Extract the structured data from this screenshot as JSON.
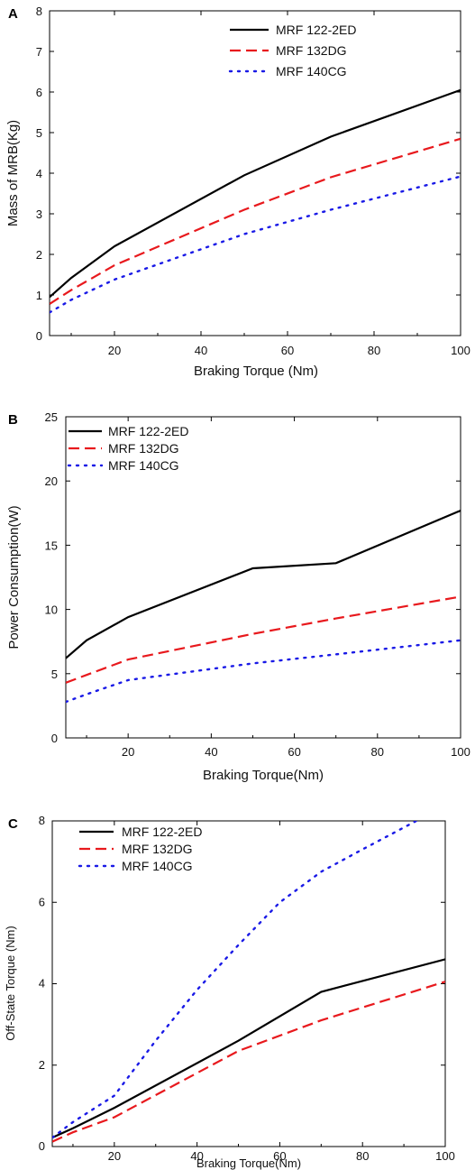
{
  "colors": {
    "black": "#000000",
    "red": "#e8191d",
    "blue": "#1a1ae6"
  },
  "chart_data": [
    {
      "panel": "A",
      "type": "line",
      "title": "",
      "xlabel": "Braking Torque (Nm)",
      "ylabel": "Mass of MRB(Kg)",
      "xlim": [
        5,
        100
      ],
      "ylim": [
        0,
        8
      ],
      "xticks": [
        20,
        40,
        60,
        80,
        100
      ],
      "yticks": [
        0,
        1,
        2,
        3,
        4,
        5,
        6,
        7,
        8
      ],
      "legend": "top-center",
      "series": [
        {
          "name": "MRF 122-2ED",
          "style": "solid",
          "color": "#000000",
          "x": [
            5,
            10,
            20,
            50,
            70,
            100
          ],
          "y": [
            0.95,
            1.42,
            2.2,
            3.95,
            4.9,
            6.05
          ]
        },
        {
          "name": "MRF 132DG",
          "style": "dashed",
          "color": "#e8191d",
          "x": [
            5,
            10,
            20,
            50,
            70,
            100
          ],
          "y": [
            0.78,
            1.12,
            1.73,
            3.1,
            3.9,
            4.85
          ]
        },
        {
          "name": "MRF 140CG",
          "style": "dotted",
          "color": "#1a1ae6",
          "x": [
            5,
            10,
            20,
            50,
            70,
            100
          ],
          "y": [
            0.57,
            0.88,
            1.38,
            2.5,
            3.1,
            3.92
          ]
        }
      ]
    },
    {
      "panel": "B",
      "type": "line",
      "title": "",
      "xlabel": "Braking Torque(Nm)",
      "ylabel": "Power Consumption(W)",
      "xlim": [
        5,
        100
      ],
      "ylim": [
        0,
        25
      ],
      "xticks": [
        20,
        40,
        60,
        80,
        100
      ],
      "yticks": [
        0,
        5,
        10,
        15,
        20,
        25
      ],
      "legend": "top-left",
      "series": [
        {
          "name": "MRF 122-2ED",
          "style": "solid",
          "color": "#000000",
          "x": [
            5,
            10,
            20,
            50,
            70,
            100
          ],
          "y": [
            6.2,
            7.6,
            9.4,
            13.2,
            13.6,
            17.7
          ]
        },
        {
          "name": "MRF 132DG",
          "style": "dashed",
          "color": "#e8191d",
          "x": [
            5,
            10,
            20,
            50,
            70,
            100
          ],
          "y": [
            4.3,
            4.9,
            6.1,
            8.1,
            9.3,
            11.0
          ]
        },
        {
          "name": "MRF 140CG",
          "style": "dotted",
          "color": "#1a1ae6",
          "x": [
            5,
            10,
            20,
            50,
            70,
            100
          ],
          "y": [
            2.8,
            3.4,
            4.5,
            5.8,
            6.5,
            7.6
          ]
        }
      ]
    },
    {
      "panel": "C",
      "type": "line",
      "title": "",
      "xlabel": "Braking Torque(Nm)",
      "ylabel": "Off-State Torque (Nm)",
      "xlim": [
        5,
        100
      ],
      "ylim": [
        0,
        8
      ],
      "xticks": [
        20,
        40,
        60,
        80,
        100
      ],
      "yticks": [
        0,
        2,
        4,
        6,
        8
      ],
      "legend": "top-left",
      "series": [
        {
          "name": "MRF 122-2ED",
          "style": "solid",
          "color": "#000000",
          "x": [
            5,
            10,
            20,
            50,
            70,
            100
          ],
          "y": [
            0.22,
            0.45,
            0.95,
            2.6,
            3.8,
            4.6
          ]
        },
        {
          "name": "MRF 132DG",
          "style": "dashed",
          "color": "#e8191d",
          "x": [
            5,
            10,
            20,
            50,
            70,
            100
          ],
          "y": [
            0.12,
            0.35,
            0.72,
            2.35,
            3.1,
            4.05
          ]
        },
        {
          "name": "MRF 140CG",
          "style": "dotted",
          "color": "#1a1ae6",
          "x": [
            5,
            10,
            20,
            30,
            40,
            50,
            60,
            70,
            80,
            93
          ],
          "y": [
            0.22,
            0.6,
            1.25,
            2.6,
            3.85,
            4.95,
            6.0,
            6.75,
            7.3,
            8.0
          ]
        }
      ]
    }
  ]
}
